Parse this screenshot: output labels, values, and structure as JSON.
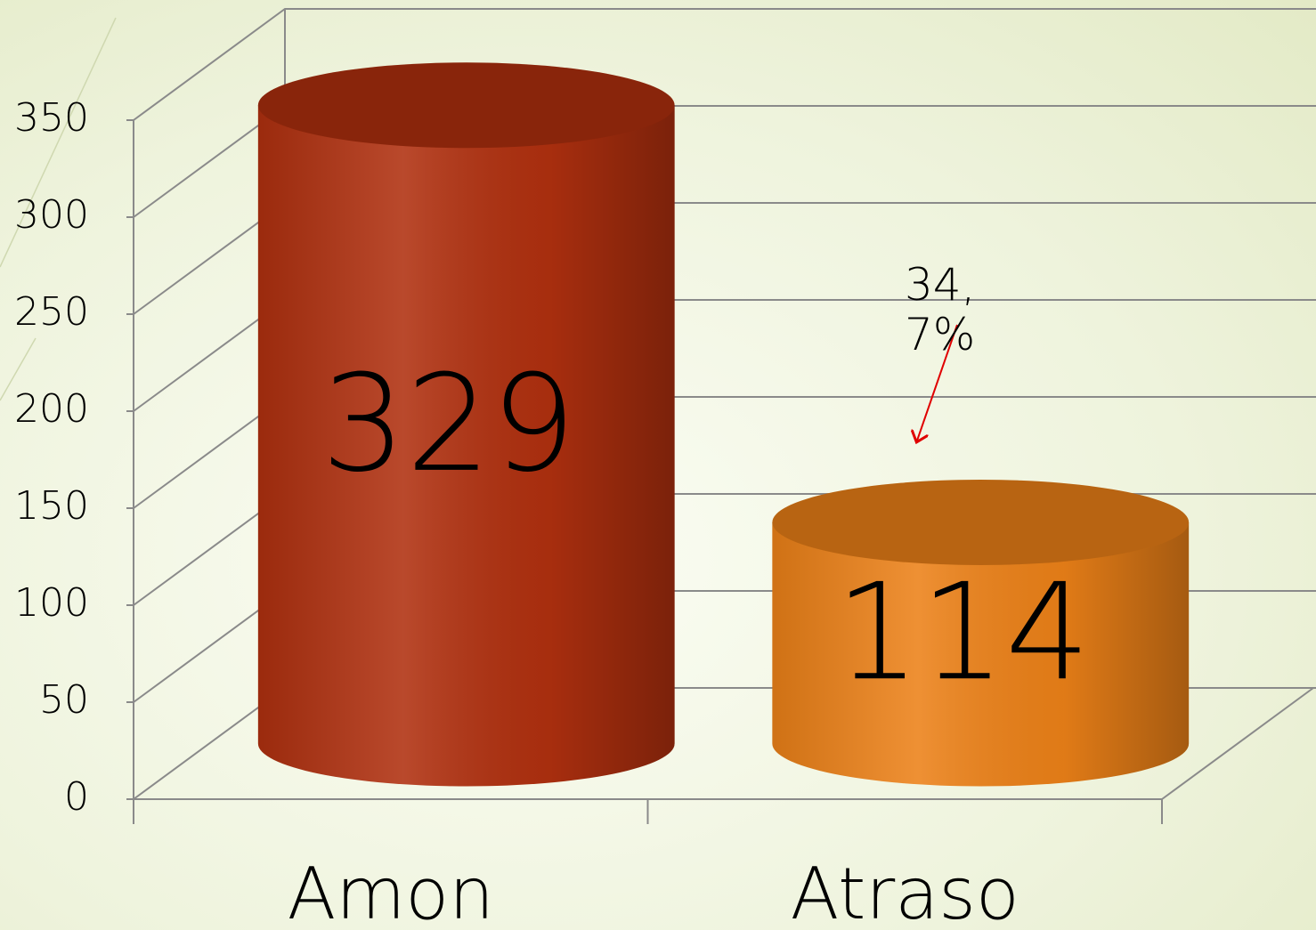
{
  "chart_data": {
    "type": "bar3d",
    "categories": [
      "Amon",
      "Atraso"
    ],
    "series": [
      {
        "values": [
          329,
          114
        ],
        "colors": [
          "#b0300f",
          "#ec8118"
        ]
      }
    ],
    "ylim": [
      0,
      350
    ],
    "yticks": [
      0,
      50,
      100,
      150,
      200,
      250,
      300,
      350
    ],
    "grid": true,
    "annotation": "34, 7%"
  }
}
